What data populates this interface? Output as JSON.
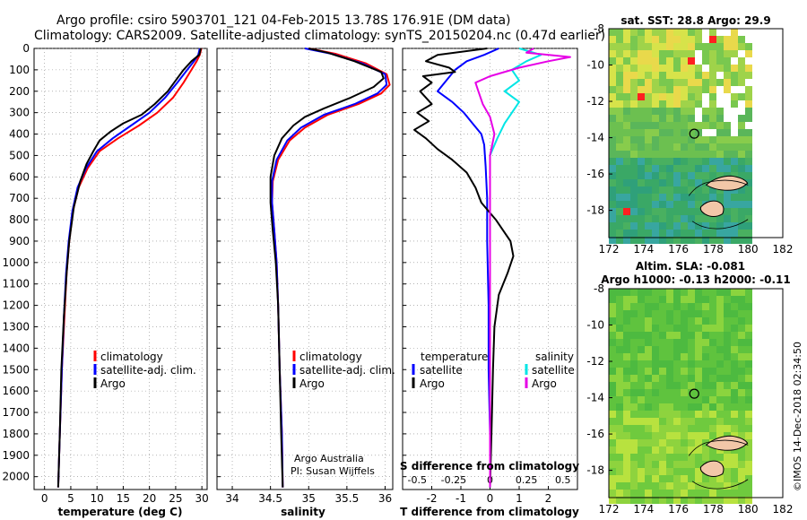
{
  "header": {
    "line1": "Argo profile: csiro 5903701_121 04-Feb-2015 13.78S 176.91E (DM data)",
    "line2": "Climatology: CARS2009. Satellite-adjusted climatology: synTS_20150204.nc (0.47d earlier)"
  },
  "depth_axis": {
    "ticks": [
      0,
      100,
      200,
      300,
      400,
      500,
      600,
      700,
      800,
      900,
      1000,
      1100,
      1200,
      1300,
      1400,
      1500,
      1600,
      1700,
      1800,
      1900,
      2000
    ],
    "ylim": [
      0,
      2060
    ]
  },
  "colors": {
    "climatology": "#ff0000",
    "satellite": "#0000ff",
    "argo": "#000000",
    "sat_salinity": "#00e5e5",
    "clim_salinity": "#e600e6"
  },
  "chart_data": [
    {
      "type": "line",
      "title": "",
      "xlabel": "temperature (deg C)",
      "ylabel": "depth",
      "xlim": [
        -2,
        31
      ],
      "xticks": [
        0,
        5,
        10,
        15,
        20,
        25,
        30
      ],
      "xtick_labels": [
        "0",
        "5",
        "10",
        "15",
        "20",
        "25",
        "30"
      ],
      "legend": [
        "climatology",
        "satellite-adj. clim.",
        "Argo"
      ],
      "series": [
        {
          "name": "climatology",
          "color": "#ff0000",
          "points": [
            [
              29.9,
              0
            ],
            [
              29.6,
              30
            ],
            [
              29.0,
              60
            ],
            [
              28.0,
              100
            ],
            [
              26.5,
              160
            ],
            [
              24.5,
              230
            ],
            [
              21.5,
              300
            ],
            [
              18.0,
              360
            ],
            [
              14.0,
              420
            ],
            [
              10.5,
              480
            ],
            [
              8.2,
              560
            ],
            [
              6.5,
              650
            ],
            [
              5.4,
              760
            ],
            [
              4.7,
              900
            ],
            [
              4.2,
              1050
            ],
            [
              3.8,
              1250
            ],
            [
              3.3,
              1500
            ],
            [
              2.9,
              1800
            ],
            [
              2.6,
              2050
            ]
          ]
        },
        {
          "name": "satellite-adj. clim.",
          "color": "#0000ff",
          "points": [
            [
              29.6,
              0
            ],
            [
              29.3,
              30
            ],
            [
              28.5,
              60
            ],
            [
              27.2,
              100
            ],
            [
              25.3,
              160
            ],
            [
              23.0,
              230
            ],
            [
              20.0,
              300
            ],
            [
              16.5,
              360
            ],
            [
              13.0,
              420
            ],
            [
              10.0,
              480
            ],
            [
              7.9,
              560
            ],
            [
              6.3,
              650
            ],
            [
              5.3,
              760
            ],
            [
              4.6,
              900
            ],
            [
              4.1,
              1050
            ],
            [
              3.7,
              1250
            ],
            [
              3.3,
              1500
            ],
            [
              2.9,
              1800
            ],
            [
              2.6,
              2050
            ]
          ]
        },
        {
          "name": "Argo",
          "color": "#000000",
          "points": [
            [
              29.8,
              0
            ],
            [
              29.5,
              30
            ],
            [
              28.0,
              60
            ],
            [
              26.5,
              100
            ],
            [
              25.0,
              150
            ],
            [
              23.5,
              200
            ],
            [
              21.0,
              260
            ],
            [
              18.5,
              310
            ],
            [
              15.0,
              350
            ],
            [
              12.5,
              390
            ],
            [
              10.5,
              430
            ],
            [
              9.3,
              480
            ],
            [
              8.0,
              540
            ],
            [
              6.8,
              620
            ],
            [
              5.6,
              740
            ],
            [
              4.7,
              900
            ],
            [
              4.2,
              1050
            ],
            [
              3.7,
              1250
            ],
            [
              3.2,
              1500
            ],
            [
              2.9,
              1800
            ],
            [
              2.6,
              2050
            ]
          ]
        }
      ]
    },
    {
      "type": "line",
      "title": "",
      "xlabel": "salinity",
      "ylabel": "depth",
      "xlim": [
        33.8,
        36.1
      ],
      "xticks": [
        34,
        34.5,
        35,
        35.5,
        36
      ],
      "xtick_labels": [
        "34",
        "34.5",
        "35",
        "35.5",
        "36"
      ],
      "legend": [
        "climatology",
        "satellite-adj. clim.",
        "Argo"
      ],
      "annotation": [
        "Argo Australia",
        "PI: Susan Wijffels"
      ],
      "series": [
        {
          "name": "climatology",
          "color": "#ff0000",
          "points": [
            [
              35.0,
              0
            ],
            [
              35.35,
              25
            ],
            [
              35.75,
              70
            ],
            [
              36.02,
              120
            ],
            [
              36.06,
              170
            ],
            [
              35.95,
              210
            ],
            [
              35.65,
              260
            ],
            [
              35.25,
              310
            ],
            [
              34.95,
              370
            ],
            [
              34.75,
              430
            ],
            [
              34.6,
              520
            ],
            [
              34.53,
              620
            ],
            [
              34.52,
              720
            ],
            [
              34.55,
              850
            ],
            [
              34.58,
              1000
            ],
            [
              34.6,
              1200
            ],
            [
              34.62,
              1500
            ],
            [
              34.65,
              1800
            ],
            [
              34.66,
              2050
            ]
          ]
        },
        {
          "name": "satellite-adj. clim.",
          "color": "#0000ff",
          "points": [
            [
              34.95,
              0
            ],
            [
              35.3,
              25
            ],
            [
              35.7,
              70
            ],
            [
              36.0,
              120
            ],
            [
              36.02,
              170
            ],
            [
              35.9,
              210
            ],
            [
              35.6,
              260
            ],
            [
              35.2,
              310
            ],
            [
              34.9,
              370
            ],
            [
              34.72,
              430
            ],
            [
              34.58,
              520
            ],
            [
              34.52,
              620
            ],
            [
              34.52,
              720
            ],
            [
              34.55,
              850
            ],
            [
              34.58,
              1000
            ],
            [
              34.6,
              1200
            ],
            [
              34.62,
              1500
            ],
            [
              34.65,
              1800
            ],
            [
              34.66,
              2050
            ]
          ]
        },
        {
          "name": "Argo",
          "color": "#000000",
          "points": [
            [
              35.0,
              0
            ],
            [
              35.25,
              20
            ],
            [
              35.6,
              60
            ],
            [
              35.95,
              110
            ],
            [
              35.98,
              140
            ],
            [
              35.85,
              180
            ],
            [
              35.55,
              230
            ],
            [
              35.2,
              280
            ],
            [
              34.95,
              320
            ],
            [
              34.8,
              360
            ],
            [
              34.65,
              420
            ],
            [
              34.55,
              500
            ],
            [
              34.5,
              600
            ],
            [
              34.5,
              720
            ],
            [
              34.53,
              850
            ],
            [
              34.57,
              1000
            ],
            [
              34.6,
              1200
            ],
            [
              34.62,
              1500
            ],
            [
              34.64,
              1800
            ],
            [
              34.66,
              2050
            ]
          ]
        }
      ]
    },
    {
      "type": "line",
      "title": "",
      "xlabel": "T difference from climatology",
      "x2label": "S difference from climatology",
      "ylabel": "depth",
      "xlim": [
        -3.0,
        3.0
      ],
      "xticks": [
        -2,
        -1,
        0,
        1,
        2
      ],
      "xtick_labels": [
        "-2",
        "-1",
        "0",
        "1",
        "2"
      ],
      "x2ticks": [
        -0.5,
        -0.25,
        0,
        0.25,
        0.5
      ],
      "x2tick_labels": [
        "-0.5",
        "-0.25",
        "0",
        "0.25",
        "0.5"
      ],
      "x2lim": [
        -0.6,
        0.6
      ],
      "legend_left_title": "temperature",
      "legend_right_title": "salinity",
      "legend_left": [
        "satellite",
        "Argo"
      ],
      "legend_right": [
        "satellite",
        "Argo"
      ],
      "series": [
        {
          "name": "temperature satellite",
          "color": "#0000ff",
          "axis": "T",
          "points": [
            [
              0.3,
              0
            ],
            [
              -0.2,
              30
            ],
            [
              -0.8,
              60
            ],
            [
              -1.2,
              100
            ],
            [
              -1.5,
              150
            ],
            [
              -1.8,
              200
            ],
            [
              -1.3,
              250
            ],
            [
              -0.9,
              300
            ],
            [
              -0.6,
              350
            ],
            [
              -0.3,
              400
            ],
            [
              -0.2,
              450
            ],
            [
              -0.15,
              550
            ],
            [
              -0.1,
              700
            ],
            [
              -0.1,
              900
            ],
            [
              -0.05,
              1200
            ],
            [
              -0.05,
              1500
            ],
            [
              0.0,
              1800
            ],
            [
              0.0,
              2050
            ]
          ]
        },
        {
          "name": "temperature Argo",
          "color": "#000000",
          "axis": "T",
          "points": [
            [
              -0.1,
              0
            ],
            [
              -1.8,
              30
            ],
            [
              -2.2,
              60
            ],
            [
              -1.4,
              90
            ],
            [
              -1.2,
              110
            ],
            [
              -2.3,
              130
            ],
            [
              -2.0,
              160
            ],
            [
              -2.4,
              200
            ],
            [
              -2.0,
              260
            ],
            [
              -2.5,
              300
            ],
            [
              -2.1,
              340
            ],
            [
              -2.6,
              380
            ],
            [
              -2.2,
              420
            ],
            [
              -1.8,
              470
            ],
            [
              -1.3,
              520
            ],
            [
              -0.8,
              580
            ],
            [
              -0.5,
              650
            ],
            [
              -0.3,
              720
            ],
            [
              0.2,
              800
            ],
            [
              0.7,
              900
            ],
            [
              0.8,
              970
            ],
            [
              0.6,
              1050
            ],
            [
              0.3,
              1150
            ],
            [
              0.15,
              1300
            ],
            [
              0.1,
              1500
            ],
            [
              0.05,
              1800
            ],
            [
              0.0,
              2050
            ]
          ]
        },
        {
          "name": "salinity satellite",
          "color": "#00e5e5",
          "axis": "S",
          "points": [
            [
              0.2,
              0
            ],
            [
              0.35,
              30
            ],
            [
              0.25,
              60
            ],
            [
              0.15,
              100
            ],
            [
              0.2,
              150
            ],
            [
              0.1,
              200
            ],
            [
              0.2,
              250
            ],
            [
              0.15,
              300
            ],
            [
              0.1,
              350
            ],
            [
              0.05,
              420
            ],
            [
              0.0,
              500
            ],
            [
              0.0,
              700
            ],
            [
              0.0,
              1000
            ],
            [
              0.0,
              1500
            ],
            [
              0.0,
              2050
            ]
          ]
        },
        {
          "name": "salinity Argo",
          "color": "#e600e6",
          "axis": "S",
          "points": [
            [
              0.3,
              0
            ],
            [
              0.25,
              20
            ],
            [
              0.55,
              40
            ],
            [
              0.4,
              60
            ],
            [
              0.2,
              90
            ],
            [
              0.0,
              130
            ],
            [
              -0.1,
              160
            ],
            [
              -0.08,
              200
            ],
            [
              -0.05,
              260
            ],
            [
              0.0,
              320
            ],
            [
              0.03,
              400
            ],
            [
              0.0,
              500
            ],
            [
              0.0,
              700
            ],
            [
              0.0,
              1000
            ],
            [
              0.0,
              1500
            ],
            [
              0.0,
              2050
            ]
          ]
        }
      ]
    },
    {
      "type": "heatmap",
      "title": "sat. SST: 28.8 Argo: 29.9",
      "xlim": [
        172,
        182
      ],
      "ylim": [
        -19.5,
        -8
      ],
      "xticks": [
        172,
        174,
        176,
        178,
        180,
        182
      ],
      "yticks": [
        -8,
        -10,
        -12,
        -14,
        -16,
        -18
      ],
      "marker": {
        "lon": 176.91,
        "lat": -13.78
      }
    },
    {
      "type": "heatmap",
      "title": "Altim. SLA: -0.081",
      "subtitle": "Argo h1000: -0.13 h2000: -0.11",
      "xlim": [
        172,
        182
      ],
      "ylim": [
        -19.5,
        -8
      ],
      "xticks": [
        172,
        174,
        176,
        178,
        180,
        182
      ],
      "yticks": [
        -8,
        -10,
        -12,
        -14,
        -16,
        -18
      ],
      "marker": {
        "lon": 176.91,
        "lat": -13.78
      }
    }
  ],
  "credit": "©IMOS 14-Dec-2018 02:34:50"
}
